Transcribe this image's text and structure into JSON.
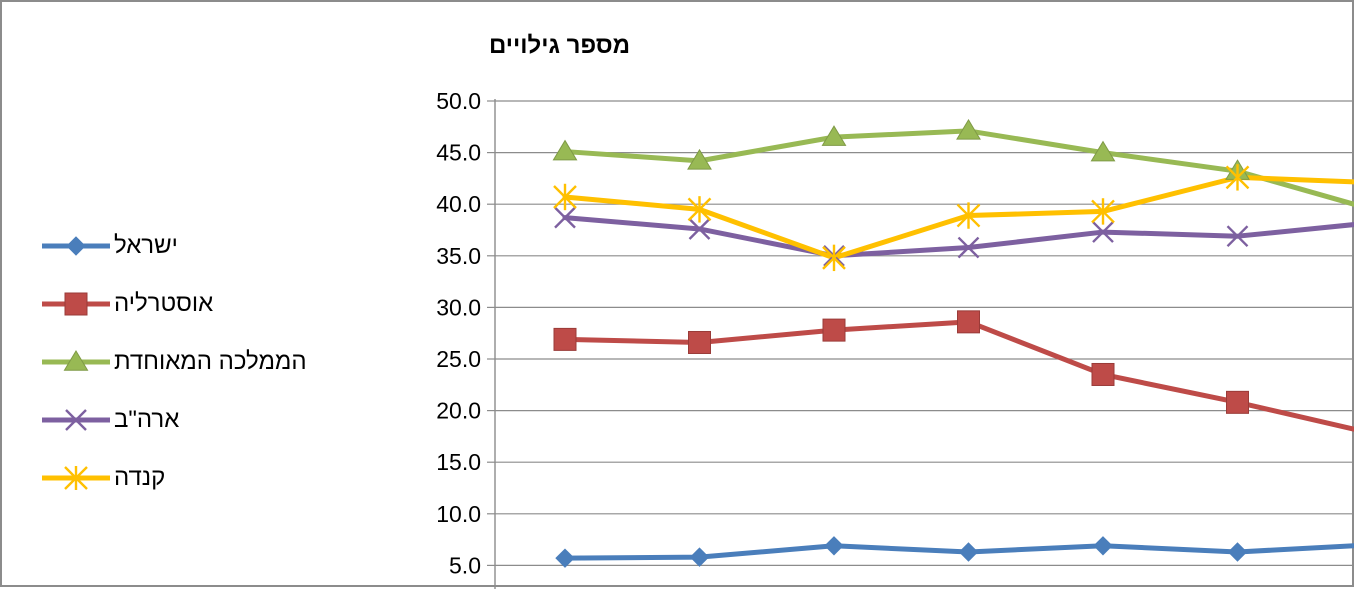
{
  "chart_data": {
    "type": "line",
    "ylabel": "מספר גילויים",
    "ylim": [
      5.0,
      50.0
    ],
    "ytick_step": 5.0,
    "yticks": [
      "5.0",
      "10.0",
      "15.0",
      "20.0",
      "25.0",
      "30.0",
      "35.0",
      "40.0",
      "45.0",
      "50.0"
    ],
    "grid": true,
    "legend_position": "left",
    "series": [
      {
        "name": "ישראל",
        "color": "#4a7ebb",
        "marker": "diamond",
        "values": [
          5.7,
          5.8,
          6.9,
          6.3,
          6.9,
          6.3,
          7.0
        ]
      },
      {
        "name": "אוסטרליה",
        "color": "#be4b48",
        "marker": "square",
        "values": [
          26.9,
          26.6,
          27.8,
          28.6,
          23.5,
          20.8,
          17.8
        ]
      },
      {
        "name": "הממלכה המאוחדת",
        "color": "#98b954",
        "marker": "triangle",
        "values": [
          45.1,
          44.2,
          46.5,
          47.1,
          45.0,
          43.2,
          39.5
        ]
      },
      {
        "name": "ארה\"ב",
        "color": "#7d60a0",
        "marker": "x",
        "values": [
          38.7,
          37.6,
          35.0,
          35.8,
          37.3,
          36.9,
          38.2
        ]
      },
      {
        "name": "קנדה",
        "color": "#ffc000",
        "marker": "star",
        "values": [
          40.7,
          39.5,
          34.8,
          38.9,
          39.3,
          42.6,
          42.1
        ]
      }
    ]
  }
}
